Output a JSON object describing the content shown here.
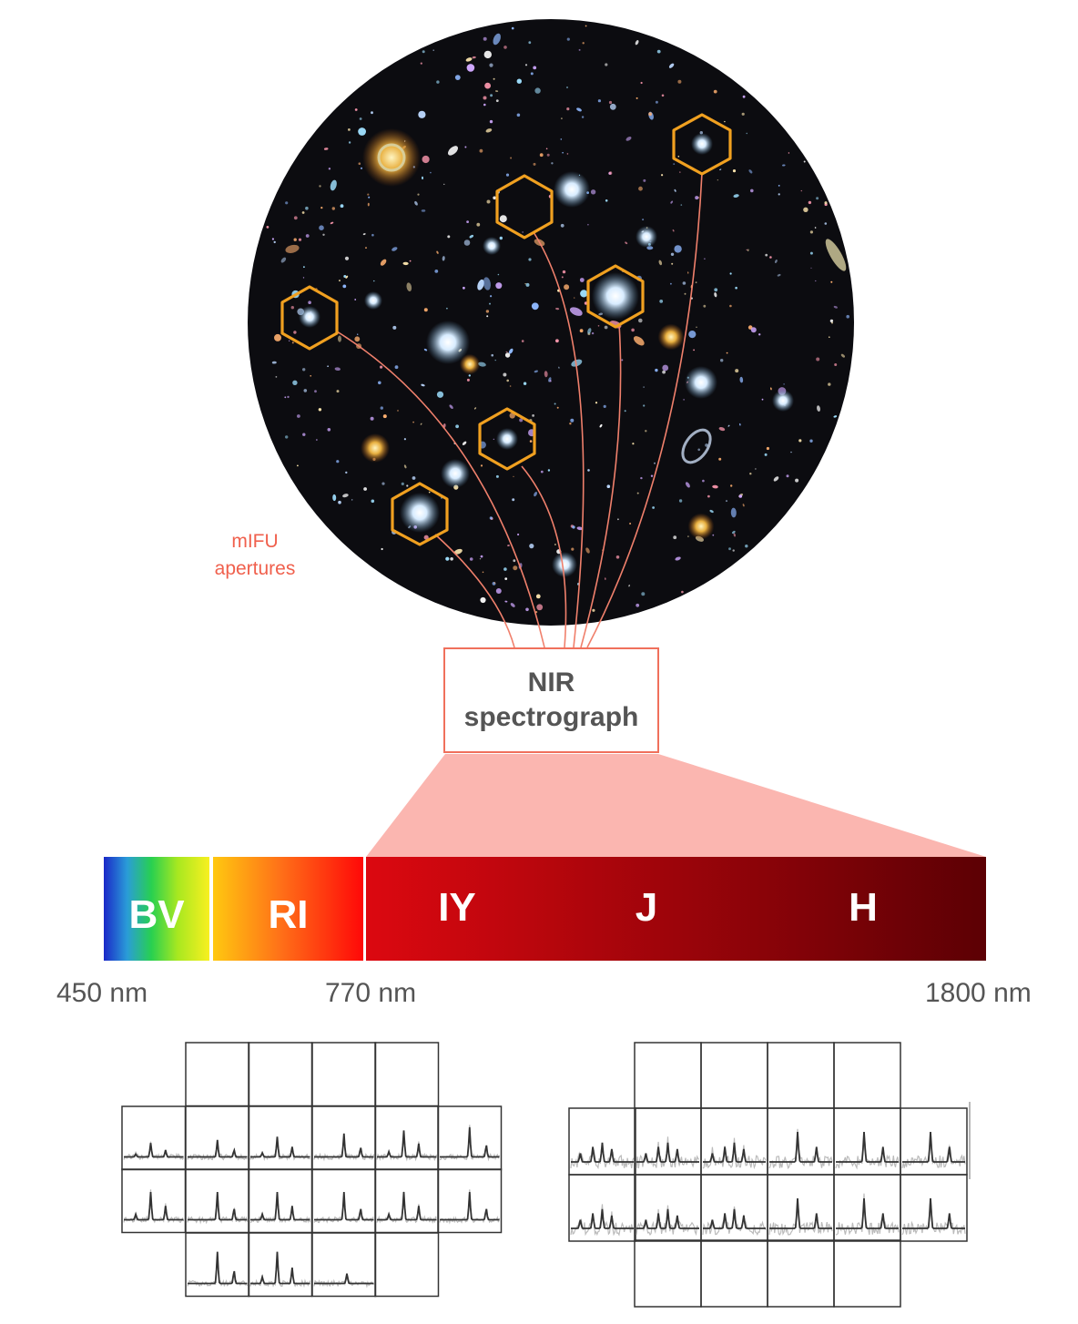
{
  "aperture_label": {
    "line1": "mIFU",
    "line2": "apertures"
  },
  "instrument": {
    "line1": "NIR",
    "line2": "spectrograph"
  },
  "bands": [
    "BV",
    "RI",
    "IY",
    "J",
    "H"
  ],
  "wavelengths": [
    "450 nm",
    "770 nm",
    "1800 nm"
  ],
  "colors": {
    "hexagon": "#f0a020",
    "fiber": "#f0806c",
    "spectrograph_border": "#f0705c",
    "projection": "#fbb6b0",
    "label_red": "#f0604d"
  },
  "icons": [
    "galaxy-field",
    "hexagon-aperture",
    "fiber-line",
    "spectrum-grid"
  ]
}
